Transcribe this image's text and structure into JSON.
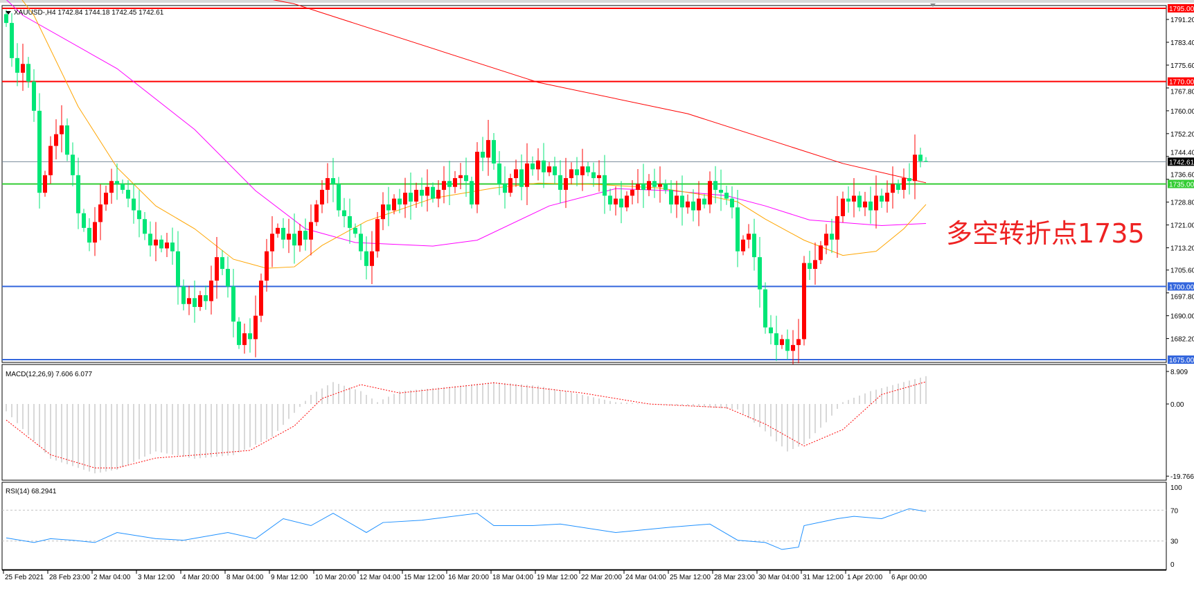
{
  "header": {
    "symbol_line": "XAUUSD-,H4  1742.84 1744.18 1742.45 1742.61"
  },
  "annotation": {
    "text": "多空转折点1735",
    "color": "#ee2222"
  },
  "macd_header": "MACD(12,26,9) 7.606 6.077",
  "rsi_header": "RSI(14) 68.2941",
  "chart_data": [
    {
      "type": "candlestick",
      "symbol": "XAUUSD-",
      "timeframe": "H4",
      "colors": {
        "up": "#ff0000",
        "down": "#00e676",
        "ma_slow": "#ff0000",
        "ma_mid": "#ff00ff",
        "ma_fast": "#ffa500"
      },
      "ylim": [
        1674.4,
        1796.5
      ],
      "y_ticks": [
        "1791.20",
        "1783.40",
        "1775.60",
        "1767.80",
        "1760.00",
        "1752.20",
        "1744.40",
        "1736.60",
        "1728.80",
        "1721.00",
        "1713.20",
        "1705.60",
        "1697.80",
        "1690.00",
        "1682.20"
      ],
      "x_ticks": [
        "25 Feb 2021",
        "28 Feb 23:00",
        "2 Mar 04:00",
        "3 Mar 12:00",
        "4 Mar 20:00",
        "8 Mar 04:00",
        "9 Mar 12:00",
        "10 Mar 20:00",
        "12 Mar 04:00",
        "15 Mar 12:00",
        "16 Mar 20:00",
        "18 Mar 04:00",
        "19 Mar 12:00",
        "22 Mar 20:00",
        "24 Mar 04:00",
        "25 Mar 12:00",
        "28 Mar 23:00",
        "30 Mar 04:00",
        "31 Mar 12:00",
        "1 Apr 20:00",
        "6 Apr 00:00"
      ],
      "x_tick_every_bars": 8,
      "close": [
        1790,
        1778,
        1773,
        1776,
        1770,
        1760,
        1732,
        1738,
        1748,
        1752,
        1755,
        1745,
        1738,
        1725,
        1720,
        1715,
        1722,
        1728,
        1732,
        1736,
        1735,
        1733,
        1730,
        1726,
        1723,
        1718,
        1714,
        1716,
        1713,
        1715,
        1712,
        1700,
        1694,
        1696,
        1693,
        1697,
        1695,
        1702,
        1710,
        1706,
        1700,
        1688,
        1680,
        1684,
        1682,
        1690,
        1702,
        1712,
        1718,
        1720,
        1716,
        1718,
        1714,
        1719,
        1716,
        1722,
        1728,
        1733,
        1737,
        1735,
        1726,
        1724,
        1720,
        1718,
        1712,
        1707,
        1712,
        1723,
        1728,
        1726,
        1730,
        1728,
        1732,
        1729,
        1733,
        1731,
        1734,
        1730,
        1733,
        1736,
        1734,
        1737,
        1738,
        1736,
        1728,
        1746,
        1744,
        1750,
        1742,
        1735,
        1732,
        1737,
        1740,
        1734,
        1742,
        1740,
        1743,
        1739,
        1741,
        1738,
        1733,
        1737,
        1740,
        1738,
        1741,
        1739,
        1737,
        1738,
        1731,
        1728,
        1730,
        1727,
        1731,
        1733,
        1735,
        1733,
        1736,
        1734,
        1735,
        1733,
        1728,
        1731,
        1727,
        1729,
        1726,
        1730,
        1728,
        1736,
        1733,
        1732,
        1730,
        1727,
        1712,
        1716,
        1718,
        1710,
        1699,
        1686,
        1684,
        1680,
        1682,
        1678,
        1680,
        1682,
        1708,
        1706,
        1709,
        1714,
        1718,
        1716,
        1724,
        1730,
        1729,
        1731,
        1727,
        1729,
        1726,
        1731,
        1729,
        1732,
        1735,
        1733,
        1737,
        1736,
        1745,
        1742.84,
        1742.61
      ],
      "last_bar": {
        "open": 1742.84,
        "high": 1744.18,
        "low": 1742.45,
        "close": 1742.61
      },
      "ma_slow": [
        [
          52,
          1796.5
        ],
        [
          96,
          1769.7
        ],
        [
          123,
          1759
        ],
        [
          151,
          1742
        ],
        [
          166,
          1735.4
        ]
      ],
      "ma_mid": [
        [
          3,
          1792.6
        ],
        [
          20,
          1774.4
        ],
        [
          34,
          1753.6
        ],
        [
          45,
          1732.7
        ],
        [
          54,
          1719.7
        ],
        [
          63,
          1715
        ],
        [
          77,
          1713.8
        ],
        [
          85,
          1715.8
        ],
        [
          98,
          1727.5
        ],
        [
          110,
          1733.4
        ],
        [
          120,
          1732.7
        ],
        [
          130,
          1731
        ],
        [
          137,
          1727.5
        ],
        [
          145,
          1722.7
        ],
        [
          158,
          1720.8
        ],
        [
          166,
          1721.5
        ]
      ],
      "ma_fast": [
        [
          5,
          1792.6
        ],
        [
          13,
          1761.4
        ],
        [
          20,
          1740.6
        ],
        [
          27,
          1727.5
        ],
        [
          34,
          1719.7
        ],
        [
          41,
          1709.3
        ],
        [
          47,
          1706.2
        ],
        [
          52,
          1706.7
        ],
        [
          57,
          1714
        ],
        [
          65,
          1722.3
        ],
        [
          77,
          1730.1
        ],
        [
          88,
          1733.6
        ],
        [
          96,
          1735.3
        ],
        [
          107,
          1734.8
        ],
        [
          118,
          1733.6
        ],
        [
          126,
          1731.2
        ],
        [
          132,
          1728.9
        ],
        [
          137,
          1723
        ],
        [
          144,
          1715.8
        ],
        [
          151,
          1710.6
        ],
        [
          157,
          1712
        ],
        [
          162,
          1719.7
        ],
        [
          166,
          1728
        ]
      ],
      "levels": [
        {
          "price": 1795,
          "label": "1795.00",
          "color": "#ff0000"
        },
        {
          "price": 1770,
          "label": "1770.00",
          "color": "#ff0000"
        },
        {
          "price": 1735,
          "label": "1735.00",
          "color": "#33cc33"
        },
        {
          "price": 1700,
          "label": "1700.00",
          "color": "#3366dd"
        },
        {
          "price": 1675,
          "label": "1675.00",
          "color": "#3366dd"
        }
      ],
      "current_price": {
        "price": 1742.61,
        "label": "1742.61"
      }
    },
    {
      "type": "bar",
      "name": "MACD(12,26,9)",
      "ylim": [
        -19.766,
        8.909
      ],
      "y_ticks": [
        "8.909",
        "0.00",
        "-19.766"
      ],
      "histogram": [
        [
          0,
          -2
        ],
        [
          8,
          -15
        ],
        [
          16,
          -19
        ],
        [
          20,
          -18
        ],
        [
          27,
          -13
        ],
        [
          34,
          -15
        ],
        [
          41,
          -14
        ],
        [
          48,
          -9
        ],
        [
          55,
          2.5
        ],
        [
          59,
          6
        ],
        [
          64,
          3.5
        ],
        [
          67,
          0.5
        ],
        [
          71,
          3.5
        ],
        [
          82,
          5
        ],
        [
          88,
          6
        ],
        [
          96,
          5
        ],
        [
          104,
          2.5
        ],
        [
          110,
          0.5
        ],
        [
          123,
          -0.5
        ],
        [
          132,
          -1.5
        ],
        [
          137,
          -7.5
        ],
        [
          141,
          -13
        ],
        [
          144,
          -11
        ],
        [
          148,
          -5
        ],
        [
          151,
          0.5
        ],
        [
          156,
          3.5
        ],
        [
          162,
          6
        ],
        [
          166,
          7.606
        ]
      ],
      "signal": [
        [
          0,
          -4.4
        ],
        [
          8,
          -13.9
        ],
        [
          16,
          -17.5
        ],
        [
          20,
          -17.5
        ],
        [
          27,
          -14.8
        ],
        [
          34,
          -14
        ],
        [
          44,
          -12.7
        ],
        [
          52,
          -6
        ],
        [
          57,
          1.5
        ],
        [
          64,
          5.3
        ],
        [
          71,
          3
        ],
        [
          88,
          5.8
        ],
        [
          104,
          3
        ],
        [
          116,
          0
        ],
        [
          130,
          -1
        ],
        [
          137,
          -5.5
        ],
        [
          144,
          -11.5
        ],
        [
          151,
          -7
        ],
        [
          158,
          2.6
        ],
        [
          166,
          6.077
        ]
      ]
    },
    {
      "type": "line",
      "name": "RSI(14)",
      "ylim": [
        0,
        100
      ],
      "y_ticks": [
        "100",
        "70",
        "30",
        "0"
      ],
      "levels": [
        70,
        30
      ],
      "color": "#1e90ff",
      "values": [
        [
          0,
          34
        ],
        [
          5,
          28
        ],
        [
          8,
          33
        ],
        [
          12,
          31
        ],
        [
          16,
          28
        ],
        [
          20,
          41
        ],
        [
          27,
          33
        ],
        [
          32,
          31
        ],
        [
          40,
          41
        ],
        [
          45,
          33
        ],
        [
          50,
          59
        ],
        [
          55,
          50
        ],
        [
          59,
          66
        ],
        [
          65,
          41
        ],
        [
          68,
          54
        ],
        [
          75,
          57
        ],
        [
          85,
          66
        ],
        [
          88,
          50
        ],
        [
          95,
          50
        ],
        [
          100,
          52
        ],
        [
          110,
          41
        ],
        [
          120,
          48
        ],
        [
          127,
          52
        ],
        [
          132,
          31
        ],
        [
          137,
          28
        ],
        [
          140,
          19
        ],
        [
          143,
          22
        ],
        [
          144,
          50
        ],
        [
          150,
          59
        ],
        [
          153,
          62
        ],
        [
          158,
          59
        ],
        [
          163,
          72
        ],
        [
          166,
          68.2941
        ]
      ]
    }
  ]
}
